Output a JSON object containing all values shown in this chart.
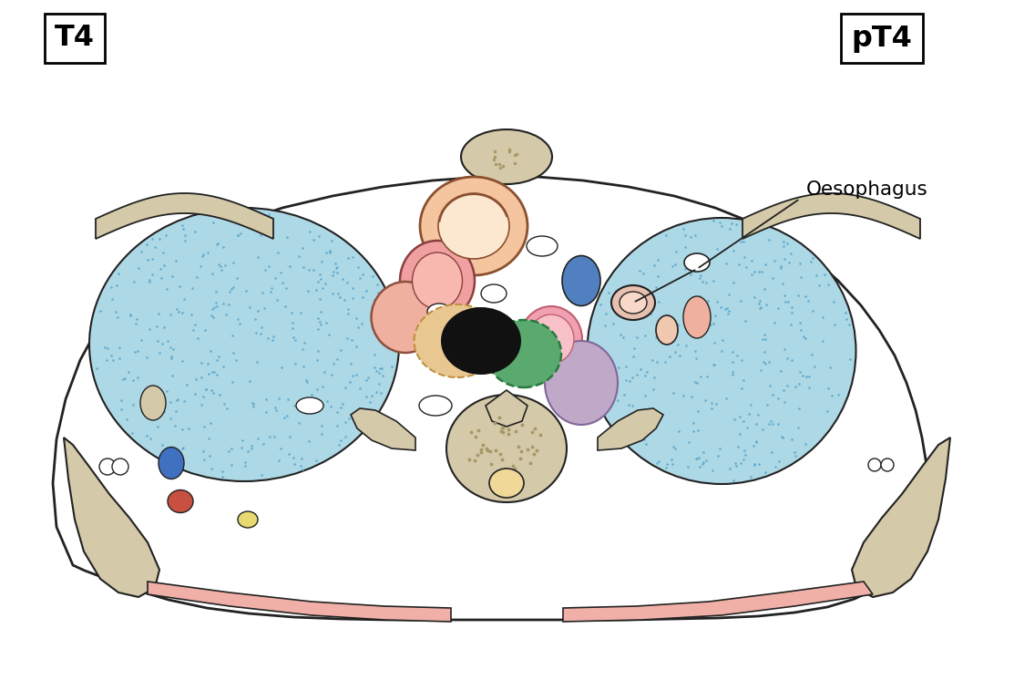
{
  "title_left": "T4",
  "title_right": "pT4",
  "label_oesophagus": "Oesophagus",
  "bg_color": "#ffffff",
  "lung_fill": "#add8e6",
  "lung_dot_color": "#5aa8cc",
  "outline_color": "#222222",
  "bone_fill": "#d4c9a8",
  "pink_fill": "#f0b0a8",
  "vessel_fill_1": "#f5c5a0",
  "vessel_fill_2": "#f0a0a0",
  "blue_fill": "#5580c8",
  "green_fill": "#4a9a60",
  "black_fill": "#111111",
  "mauve_fill": "#c0a8c8",
  "yellow_fill": "#e8d870",
  "fig_width": 11.13,
  "fig_height": 7.46
}
